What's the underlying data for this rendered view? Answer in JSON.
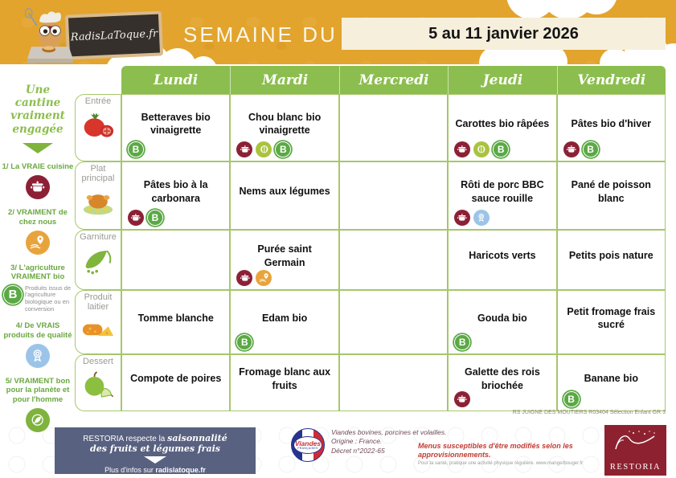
{
  "header": {
    "logo_text": "RadisLaToque.fr",
    "week_label": "SEMAINE DU",
    "date_range": "5 au 11 janvier 2026"
  },
  "sidebar": {
    "title": "Une cantine vraiment engagée",
    "items": [
      {
        "label": "1/ La VRAIE cuisine",
        "icon": "pot"
      },
      {
        "label": "2/ VRAIMENT de chez nous",
        "icon": "local"
      },
      {
        "label": "3/ L'agriculture VRAIMENT bio",
        "icon": "bio",
        "note": "Produits issus de l'agriculture biologique ou en conversion"
      },
      {
        "label": "4/ De VRAIS produits de qualité",
        "icon": "medal"
      },
      {
        "label": "5/ VRAIMENT bon pour la planète et pour l'homme",
        "icon": "planet"
      }
    ]
  },
  "menu": {
    "days": [
      "Lundi",
      "Mardi",
      "Mercredi",
      "Jeudi",
      "Vendredi"
    ],
    "courses": [
      {
        "label": "Entrée",
        "icon": "tomato-icon",
        "cells": [
          {
            "text": "Betteraves bio vinaigrette",
            "icons": [
              "bio"
            ]
          },
          {
            "text": "Chou blanc bio vinaigrette",
            "icons": [
              "pot",
              "veggie",
              "bio"
            ]
          },
          {
            "text": "",
            "icons": []
          },
          {
            "text": "Carottes bio râpées",
            "icons": [
              "pot",
              "veggie",
              "bio"
            ]
          },
          {
            "text": "Pâtes bio d'hiver",
            "icons": [
              "pot",
              "bio"
            ]
          }
        ]
      },
      {
        "label": "Plat principal",
        "icon": "chicken-icon",
        "cells": [
          {
            "text": "Pâtes bio à la carbonara",
            "icons": [
              "pot",
              "bio"
            ]
          },
          {
            "text": "Nems aux légumes",
            "icons": []
          },
          {
            "text": "",
            "icons": []
          },
          {
            "text": "Rôti de porc BBC sauce rouille",
            "icons": [
              "pot",
              "medal"
            ]
          },
          {
            "text": "Pané de poisson blanc",
            "icons": []
          }
        ]
      },
      {
        "label": "Garniture",
        "icon": "peas-icon",
        "cells": [
          {
            "text": "",
            "icons": []
          },
          {
            "text": "Purée saint Germain",
            "icons": [
              "pot",
              "local"
            ]
          },
          {
            "text": "",
            "icons": []
          },
          {
            "text": "Haricots verts",
            "icons": []
          },
          {
            "text": "Petits pois nature",
            "icons": []
          }
        ]
      },
      {
        "label": "Produit laitier",
        "icon": "cheese-icon",
        "cells": [
          {
            "text": "Tomme blanche",
            "icons": []
          },
          {
            "text": "Edam bio",
            "icons": [
              "bio"
            ]
          },
          {
            "text": "",
            "icons": []
          },
          {
            "text": "Gouda bio",
            "icons": [
              "bio"
            ]
          },
          {
            "text": "Petit fromage frais sucré",
            "icons": []
          }
        ]
      },
      {
        "label": "Dessert",
        "icon": "apple-icon",
        "cells": [
          {
            "text": "Compote de poires",
            "icons": []
          },
          {
            "text": "Fromage blanc aux fruits",
            "icons": []
          },
          {
            "text": "",
            "icons": []
          },
          {
            "text": "Galette des rois briochée",
            "icons": [
              "pot"
            ]
          },
          {
            "text": "Banane bio",
            "icons": [
              "bio"
            ]
          }
        ]
      }
    ]
  },
  "footnote": "RS JUIGNE DES MOUTIERS R03404 Sélection Enfant GR 3",
  "footer": {
    "season": {
      "prefix": "RESTORIA respecte la ",
      "script1": "saisonnalité",
      "script2": "des fruits et légumes frais",
      "info_prefix": "Plus d'infos sur ",
      "site": "radislatoque.fr"
    },
    "viandes": {
      "logo_title": "Viandes",
      "logo_subtitle": "FRANÇAISES",
      "line1": "Viandes bovines, porcines et volailles.",
      "line2": "Origine : France.",
      "line3": "Décret n°2022-65"
    },
    "notice": "Menus susceptibles d'être modifiés selon les approvisionnements.",
    "health": "Pour ta santé, pratique une activité physique régulière. www.mangerbouger.fr",
    "restoria": "RESTORIA"
  },
  "colors": {
    "header_orange": "#E2A42D",
    "table_green": "#8CBE4F",
    "grid_green": "#A6C76B",
    "pot_dark_red": "#8C2135",
    "bio_green": "#5BA945",
    "veggie_green": "#A9C33F",
    "local_orange": "#E8A43C",
    "medal_blue": "#9CC4E8",
    "footer_blue": "#596180",
    "notice_red": "#C23B33",
    "date_cream": "#F6EFDC",
    "restoria_red": "#8E2130"
  }
}
